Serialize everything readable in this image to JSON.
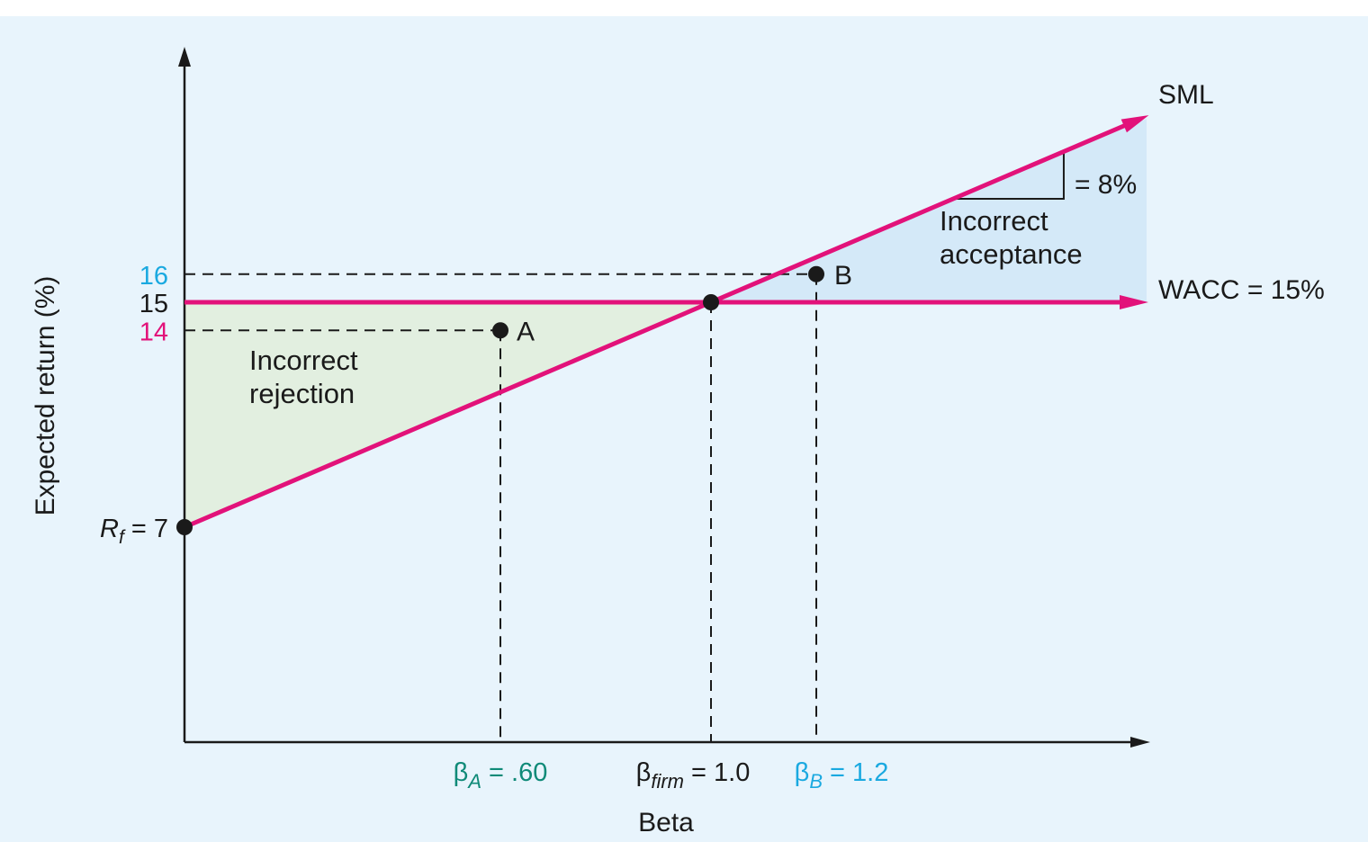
{
  "colors": {
    "background": "#e8f4fc",
    "sml": "#e2127a",
    "wacc": "#e2127a",
    "rejection_region": "#e2efe0",
    "acceptance_region": "#d4e9f8",
    "label_a": "#0f8a78",
    "label_b": "#1aa9e0",
    "tick_16": "#1aa9e0",
    "tick_14": "#e2127a",
    "text": "#1a1a1a"
  },
  "chart_data": {
    "type": "line",
    "xlabel": "Beta",
    "ylabel": "Expected return (%)",
    "series": [
      {
        "name": "SML",
        "x": [
          0,
          1.8
        ],
        "y": [
          7,
          21.4
        ]
      },
      {
        "name": "WACC = 15%",
        "x": [
          0,
          1.8
        ],
        "y": [
          15,
          15
        ]
      }
    ],
    "points": [
      {
        "name": "A",
        "x": 0.6,
        "y": 14
      },
      {
        "name": "B",
        "x": 1.2,
        "y": 16
      },
      {
        "name": "firm",
        "x": 1.0,
        "y": 15
      },
      {
        "name": "Rf",
        "x": 0,
        "y": 7
      }
    ],
    "y_ticks": [
      {
        "label": "16",
        "value": 16
      },
      {
        "label": "15",
        "value": 15
      },
      {
        "label": "14",
        "value": 14
      }
    ],
    "rf_label": {
      "main": "R",
      "sub": "f",
      "rest": " = 7"
    },
    "x_ticks": [
      {
        "value": 0.6,
        "sym": "β",
        "sub": "A",
        "rest": " = .60"
      },
      {
        "value": 1.0,
        "sym": "β",
        "sub": "firm",
        "rest": " = 1.0"
      },
      {
        "value": 1.2,
        "sym": "β",
        "sub": "B",
        "rest": " = 1.2"
      }
    ],
    "slope_label": "= 8%",
    "regions": {
      "rejection": {
        "line1": "Incorrect",
        "line2": "rejection"
      },
      "acceptance": {
        "line1": "Incorrect",
        "line2": "acceptance"
      }
    },
    "line_labels": {
      "sml": "SML",
      "wacc": "WACC = 15%"
    },
    "xlim": [
      0,
      1.8
    ],
    "ylim": [
      0,
      24
    ]
  }
}
